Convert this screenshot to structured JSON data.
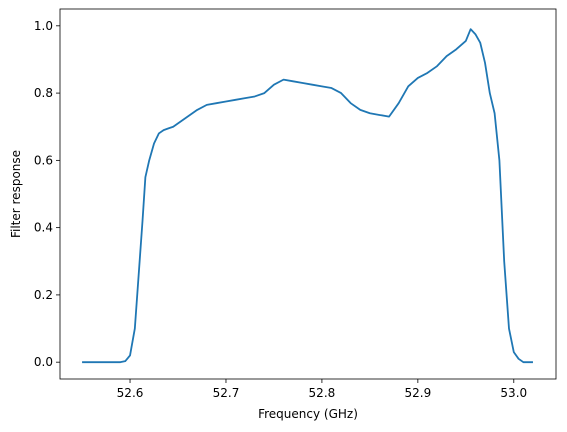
{
  "chart_data": {
    "type": "line",
    "title": "",
    "xlabel": "Frequency (GHz)",
    "ylabel": "Filter response",
    "xlim": [
      52.527,
      53.044
    ],
    "ylim": [
      -0.05,
      1.05
    ],
    "xticks": [
      52.6,
      52.7,
      52.8,
      52.9,
      53.0
    ],
    "xtick_labels": [
      "52.6",
      "52.7",
      "52.8",
      "52.9",
      "53.0"
    ],
    "yticks": [
      0.0,
      0.2,
      0.4,
      0.6,
      0.8,
      1.0
    ],
    "ytick_labels": [
      "0.0",
      "0.2",
      "0.4",
      "0.6",
      "0.8",
      "1.0"
    ],
    "grid": false,
    "line_color": "#1f77b4",
    "series": [
      {
        "x": [
          52.55,
          52.56,
          52.57,
          52.58,
          52.59,
          52.595,
          52.6,
          52.605,
          52.61,
          52.613,
          52.616,
          52.62,
          52.625,
          52.63,
          52.635,
          52.64,
          52.645,
          52.65,
          52.66,
          52.67,
          52.68,
          52.69,
          52.7,
          52.71,
          52.72,
          52.73,
          52.74,
          52.75,
          52.76,
          52.77,
          52.78,
          52.79,
          52.8,
          52.81,
          52.82,
          52.83,
          52.84,
          52.85,
          52.86,
          52.87,
          52.88,
          52.89,
          52.9,
          52.91,
          52.92,
          52.93,
          52.94,
          52.95,
          52.955,
          52.96,
          52.965,
          52.97,
          52.975,
          52.98,
          52.985,
          52.99,
          52.995,
          53.0,
          53.005,
          53.01,
          53.02
        ],
        "y": [
          0.0,
          0.0,
          0.0,
          0.0,
          0.0,
          0.003,
          0.02,
          0.1,
          0.3,
          0.42,
          0.55,
          0.6,
          0.65,
          0.68,
          0.69,
          0.695,
          0.7,
          0.71,
          0.73,
          0.75,
          0.765,
          0.77,
          0.775,
          0.78,
          0.785,
          0.79,
          0.8,
          0.825,
          0.84,
          0.835,
          0.83,
          0.825,
          0.82,
          0.815,
          0.8,
          0.77,
          0.75,
          0.74,
          0.735,
          0.73,
          0.77,
          0.82,
          0.845,
          0.86,
          0.88,
          0.91,
          0.93,
          0.955,
          0.99,
          0.975,
          0.95,
          0.89,
          0.8,
          0.74,
          0.6,
          0.3,
          0.1,
          0.03,
          0.01,
          0.0,
          0.0
        ]
      }
    ]
  }
}
